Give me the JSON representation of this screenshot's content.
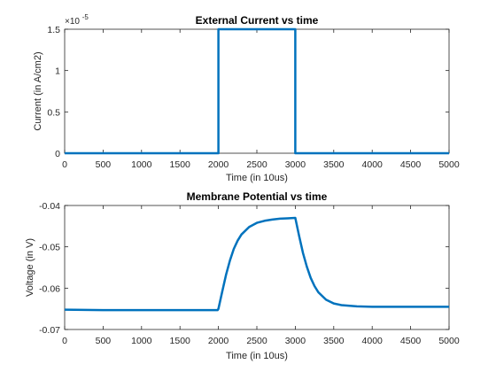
{
  "chart_data": [
    {
      "type": "line",
      "title": "External Current vs time",
      "xlabel": "Time (in 10us)",
      "ylabel": "Current (in A/cm2)",
      "exponent_label": "×10",
      "exponent_power": "-5",
      "xlim": [
        0,
        5000
      ],
      "ylim": [
        0,
        1.5
      ],
      "xticks": [
        0,
        500,
        1000,
        1500,
        2000,
        2500,
        3000,
        3500,
        4000,
        4500,
        5000
      ],
      "xtick_labels": [
        "0",
        "500",
        "1000",
        "1500",
        "2000",
        "2500",
        "3000",
        "3500",
        "4000",
        "4500",
        "5000"
      ],
      "yticks": [
        0,
        0.5,
        1,
        1.5
      ],
      "ytick_labels": [
        "0",
        "0.5",
        "1",
        "1.5"
      ],
      "grid": false,
      "color": "#0072BD",
      "series": [
        {
          "x": [
            0,
            2000,
            2000,
            3000,
            3000,
            5000
          ],
          "y": [
            0,
            0,
            1.5,
            1.5,
            0,
            0
          ]
        }
      ]
    },
    {
      "type": "line",
      "title": "Membrane Potential vs time",
      "xlabel": "Time (in 10us)",
      "ylabel": "Voltage (in V)",
      "xlim": [
        0,
        5000
      ],
      "ylim": [
        -0.07,
        -0.04
      ],
      "xticks": [
        0,
        500,
        1000,
        1500,
        2000,
        2500,
        3000,
        3500,
        4000,
        4500,
        5000
      ],
      "xtick_labels": [
        "0",
        "500",
        "1000",
        "1500",
        "2000",
        "2500",
        "3000",
        "3500",
        "4000",
        "4500",
        "5000"
      ],
      "yticks": [
        -0.07,
        -0.06,
        -0.05,
        -0.04
      ],
      "ytick_labels": [
        "-0.07",
        "-0.06",
        "-0.05",
        "-0.04"
      ],
      "grid": false,
      "color": "#0072BD",
      "series": [
        {
          "x": [
            0,
            500,
            1000,
            1500,
            1990,
            2000,
            2050,
            2100,
            2150,
            2200,
            2250,
            2300,
            2400,
            2500,
            2600,
            2700,
            2800,
            2900,
            3000,
            3050,
            3100,
            3150,
            3200,
            3250,
            3300,
            3400,
            3500,
            3600,
            3800,
            4000,
            4500,
            5000
          ],
          "y": [
            -0.0652,
            -0.0653,
            -0.0653,
            -0.0653,
            -0.0653,
            -0.065,
            -0.0608,
            -0.0567,
            -0.0533,
            -0.0505,
            -0.0485,
            -0.047,
            -0.0452,
            -0.0442,
            -0.0437,
            -0.0434,
            -0.0432,
            -0.0431,
            -0.043,
            -0.0474,
            -0.0515,
            -0.0548,
            -0.0575,
            -0.0595,
            -0.061,
            -0.0628,
            -0.0637,
            -0.0641,
            -0.0644,
            -0.0645,
            -0.0645,
            -0.0645
          ]
        }
      ]
    }
  ]
}
